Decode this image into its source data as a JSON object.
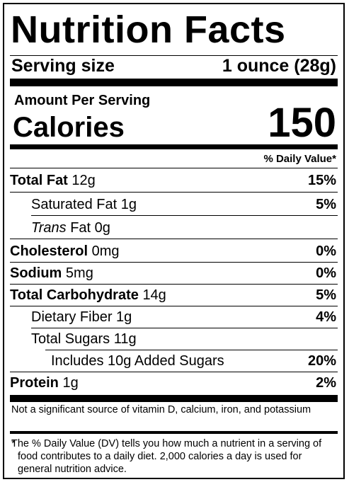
{
  "title": "Nutrition Facts",
  "serving": {
    "label": "Serving size",
    "value": "1 ounce (28g)"
  },
  "amount_per_serving": "Amount Per Serving",
  "calories": {
    "label": "Calories",
    "value": "150"
  },
  "daily_value_header": "% Daily Value*",
  "nutrients": [
    {
      "name": "Total Fat",
      "amount": "12g",
      "dv": "15%"
    },
    {
      "name": "Saturated Fat",
      "amount": "1g",
      "dv": "5%"
    },
    {
      "name_italic": "Trans",
      "name": "Fat",
      "amount": "0g",
      "dv": ""
    },
    {
      "name": "Cholesterol",
      "amount": "0mg",
      "dv": "0%"
    },
    {
      "name": "Sodium",
      "amount": "5mg",
      "dv": "0%"
    },
    {
      "name": "Total Carbohydrate",
      "amount": "14g",
      "dv": "5%"
    },
    {
      "name": "Dietary Fiber",
      "amount": "1g",
      "dv": "4%"
    },
    {
      "name": "Total Sugars",
      "amount": "11g",
      "dv": ""
    },
    {
      "name": "Includes 10g Added Sugars",
      "amount": "",
      "dv": "20%"
    },
    {
      "name": "Protein",
      "amount": "1g",
      "dv": "2%"
    }
  ],
  "footnote_not_significant": "Not a significant source of vitamin D, calcium, iron, and potassium",
  "footnote_star": "*",
  "footnote_dv": "The % Daily Value (DV) tells you how much a nutrient in a serving of food contributes to a daily diet. 2,000 calories a day is used for general nutrition advice."
}
